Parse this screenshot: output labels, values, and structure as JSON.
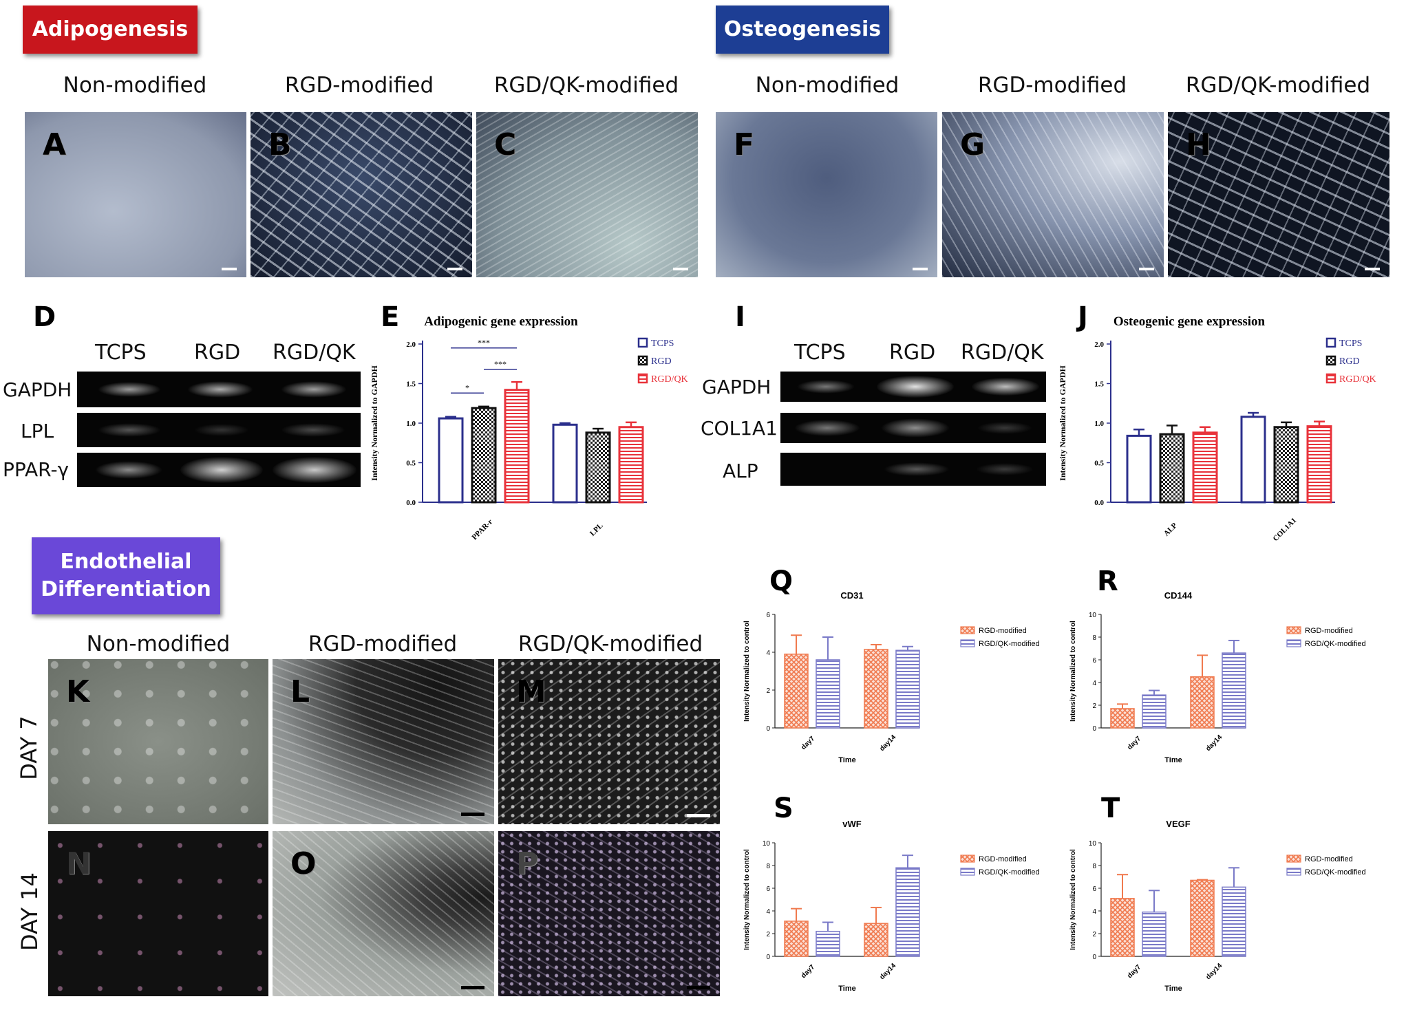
{
  "sections": {
    "adipogenesis": "Adipogenesis",
    "osteogenesis": "Osteogenesis",
    "endothelial": "Endothelial Differentiation"
  },
  "colors": {
    "adipo_tag": "#c8161d",
    "osteo_tag": "#1d3e94",
    "endo_tag": "#6a48d8",
    "tcps": "#2b2f8c",
    "rgd": "#222222",
    "rgdqk": "#e8323a",
    "rgd_mod": "#f07a4f",
    "rgdqk_mod": "#7a7ac8"
  },
  "column_titles": {
    "non": "Non-modified",
    "rgd": "RGD-modified",
    "rgdqk": "RGD/QK-modified"
  },
  "panel_letters": {
    "A": "A",
    "B": "B",
    "C": "C",
    "F": "F",
    "G": "G",
    "H": "H",
    "D": "D",
    "E": "E",
    "I": "I",
    "J": "J",
    "K": "K",
    "L": "L",
    "M": "M",
    "N": "N",
    "O": "O",
    "P": "P",
    "Q": "Q",
    "R": "R",
    "S": "S",
    "T": "T"
  },
  "days": {
    "d7": "DAY 7",
    "d14": "DAY 14"
  },
  "gel_adipo": {
    "lanes": [
      "TCPS",
      "RGD",
      "RGD/QK"
    ],
    "genes": [
      "GAPDH",
      "LPL",
      "PPAR-γ"
    ]
  },
  "gel_osteo": {
    "lanes": [
      "TCPS",
      "RGD",
      "RGD/QK"
    ],
    "genes": [
      "GAPDH",
      "COL1A1",
      "ALP"
    ]
  },
  "chart_data": [
    {
      "panel": "E",
      "type": "bar",
      "title": "Adipogenic gene expression",
      "ylabel": "Intensity Normalized to GAPDH",
      "ylim": [
        0,
        2.0
      ],
      "yticks": [
        "0.0",
        "0.5",
        "1.0",
        "1.5",
        "2.0"
      ],
      "categories": [
        "PPAR-r",
        "LPL"
      ],
      "series": [
        {
          "name": "TCPS",
          "values": [
            1.06,
            0.98
          ],
          "errors": [
            0.02,
            0.02
          ]
        },
        {
          "name": "RGD",
          "values": [
            1.19,
            0.88
          ],
          "errors": [
            0.02,
            0.05
          ]
        },
        {
          "name": "RGD/QK",
          "values": [
            1.42,
            0.95
          ],
          "errors": [
            0.1,
            0.06
          ]
        }
      ],
      "significance": [
        {
          "label": "*",
          "from": 0,
          "to": 1
        },
        {
          "label": "***",
          "from": 1,
          "to": 2
        },
        {
          "label": "***",
          "from": 0,
          "to": 2
        }
      ]
    },
    {
      "panel": "J",
      "type": "bar",
      "title": "Osteogenic gene expression",
      "ylabel": "Intensity Normalized to GAPDH",
      "ylim": [
        0,
        2.0
      ],
      "yticks": [
        "0.0",
        "0.5",
        "1.0",
        "1.5",
        "2.0"
      ],
      "categories": [
        "ALP",
        "COL1A1"
      ],
      "series": [
        {
          "name": "TCPS",
          "values": [
            0.84,
            1.08
          ],
          "errors": [
            0.08,
            0.05
          ]
        },
        {
          "name": "RGD",
          "values": [
            0.86,
            0.95
          ],
          "errors": [
            0.11,
            0.06
          ]
        },
        {
          "name": "RGD/QK",
          "values": [
            0.88,
            0.96
          ],
          "errors": [
            0.07,
            0.06
          ]
        }
      ]
    },
    {
      "panel": "Q",
      "type": "bar",
      "title": "CD31",
      "xlabel": "Time",
      "ylabel": "Intensity Normalized to control",
      "ylim": [
        0,
        6
      ],
      "yticks": [
        "0",
        "2",
        "4",
        "6"
      ],
      "categories": [
        "day7",
        "day14"
      ],
      "series": [
        {
          "name": "RGD-modified",
          "values": [
            3.9,
            4.15
          ],
          "errors": [
            1.0,
            0.25
          ]
        },
        {
          "name": "RGD/QK-modified",
          "values": [
            3.6,
            4.1
          ],
          "errors": [
            1.2,
            0.2
          ]
        }
      ]
    },
    {
      "panel": "R",
      "type": "bar",
      "title": "CD144",
      "xlabel": "Time",
      "ylabel": "Intensity Normalized to control",
      "ylim": [
        0,
        10
      ],
      "yticks": [
        "0",
        "2",
        "4",
        "6",
        "8",
        "10"
      ],
      "categories": [
        "day7",
        "day14"
      ],
      "series": [
        {
          "name": "RGD-modified",
          "values": [
            1.7,
            4.5
          ],
          "errors": [
            0.4,
            1.9
          ]
        },
        {
          "name": "RGD/QK-modified",
          "values": [
            2.9,
            6.6
          ],
          "errors": [
            0.4,
            1.1
          ]
        }
      ]
    },
    {
      "panel": "S",
      "type": "bar",
      "title": "vWF",
      "xlabel": "Time",
      "ylabel": "Intensity Normalized to control",
      "ylim": [
        0,
        10
      ],
      "yticks": [
        "0",
        "2",
        "4",
        "6",
        "8",
        "10"
      ],
      "categories": [
        "day7",
        "day14"
      ],
      "series": [
        {
          "name": "RGD-modified",
          "values": [
            3.1,
            2.9
          ],
          "errors": [
            1.1,
            1.4
          ]
        },
        {
          "name": "RGD/QK-modified",
          "values": [
            2.2,
            7.8
          ],
          "errors": [
            0.8,
            1.1
          ]
        }
      ]
    },
    {
      "panel": "T",
      "type": "bar",
      "title": "VEGF",
      "xlabel": "Time",
      "ylabel": "Intensity Normalized to control",
      "ylim": [
        0,
        10
      ],
      "yticks": [
        "0",
        "2",
        "4",
        "6",
        "8",
        "10"
      ],
      "categories": [
        "day7",
        "day14"
      ],
      "series": [
        {
          "name": "RGD-modified",
          "values": [
            5.1,
            6.7
          ],
          "errors": [
            2.1,
            0.05
          ]
        },
        {
          "name": "RGD/QK-modified",
          "values": [
            3.9,
            6.1
          ],
          "errors": [
            1.9,
            1.7
          ]
        }
      ]
    }
  ]
}
